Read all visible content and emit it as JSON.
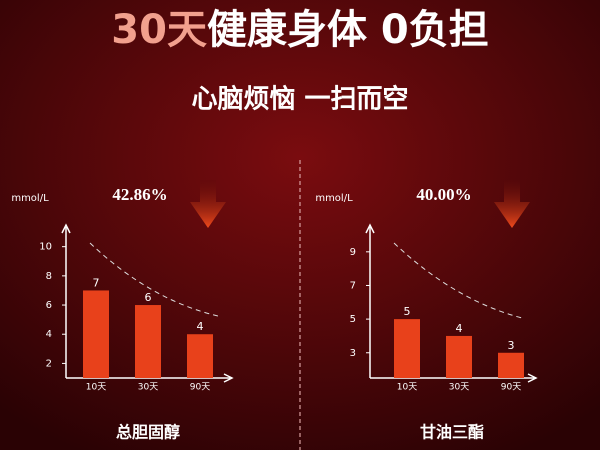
{
  "header": {
    "title_highlight": "30天",
    "title": "健康身体 0负担",
    "subtitle": "心脑烦恼 一扫而空"
  },
  "chart_data": [
    {
      "type": "bar",
      "y_label": "mmol/L",
      "annotation": "42.86%",
      "caption": "总胆固醇",
      "categories": [
        "10天",
        "30天",
        "90天"
      ],
      "values": [
        7,
        6,
        4
      ],
      "color": "#e8411b",
      "ylim": [
        1,
        10.8
      ],
      "yticks": [
        2,
        4,
        6,
        8,
        10
      ]
    },
    {
      "type": "bar",
      "y_label": "mmol/L",
      "annotation": "40.00%",
      "caption": "甘油三酯",
      "categories": [
        "10天",
        "30天",
        "90天"
      ],
      "values": [
        5,
        4,
        3
      ],
      "color": "#e8411b",
      "ylim": [
        1.5,
        10
      ],
      "yticks": [
        3,
        5,
        7,
        9
      ]
    }
  ]
}
